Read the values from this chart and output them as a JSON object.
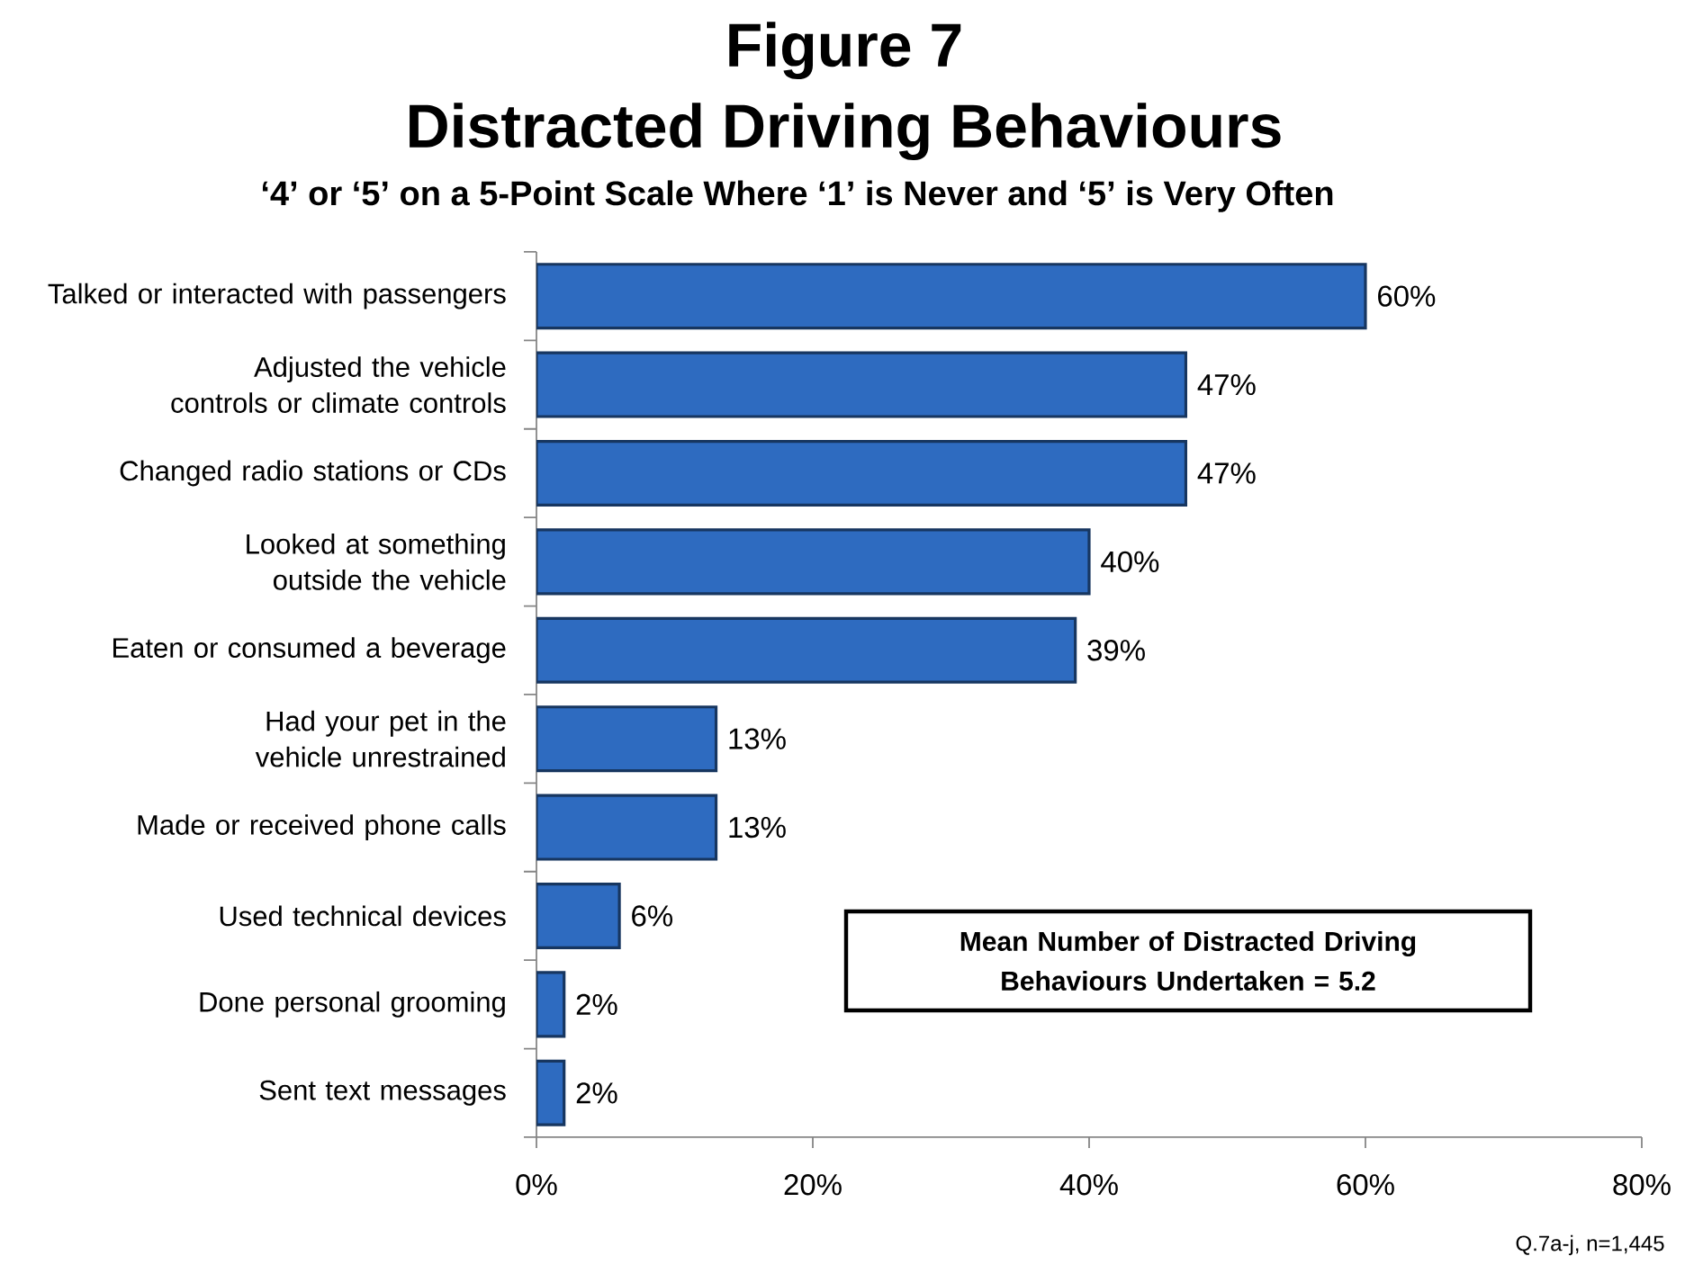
{
  "chart_data": {
    "type": "bar",
    "orientation": "horizontal",
    "title": "Figure 7 Distracted Driving Behaviours",
    "subtitle": "‘4’ or ‘5’ on a 5-Point Scale Where ‘1’ is Never and ‘5’ is Very Often",
    "categories": [
      "Talked or interacted with passengers",
      "Adjusted the vehicle controls or climate controls",
      "Changed radio stations or CDs",
      "Looked at something outside the vehicle",
      "Eaten or consumed a beverage",
      "Had your pet in the vehicle unrestrained",
      "Made or received phone calls",
      "Used technical devices",
      "Done personal grooming",
      "Sent text messages"
    ],
    "values": [
      60,
      47,
      47,
      40,
      39,
      13,
      13,
      6,
      2,
      2
    ],
    "value_labels": [
      "60%",
      "47%",
      "47%",
      "40%",
      "39%",
      "13%",
      "13%",
      "6%",
      "2%",
      "2%"
    ],
    "color": "#2e6bc0",
    "xlim": [
      0,
      80
    ],
    "xticks": [
      {
        "value": 0,
        "label": "0%"
      },
      {
        "value": 20,
        "label": "20%"
      },
      {
        "value": 40,
        "label": "40%"
      },
      {
        "value": 60,
        "label": "60%"
      },
      {
        "value": 80,
        "label": "80%"
      }
    ],
    "annotations": [
      "Mean Number of Distracted Driving Behaviours Undertaken = 5.2",
      "Q.7a-j, n=1,445"
    ]
  }
}
